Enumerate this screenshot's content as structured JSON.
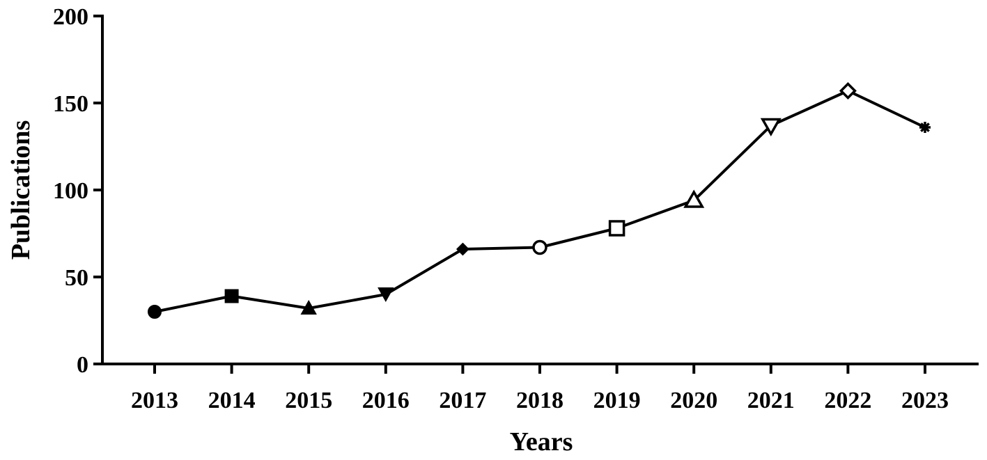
{
  "chart_data": {
    "type": "line",
    "xlabel": "Years",
    "ylabel": "Publications",
    "ylim": [
      0,
      200
    ],
    "yticks": [
      0,
      50,
      100,
      150,
      200
    ],
    "categories": [
      "2013",
      "2014",
      "2015",
      "2016",
      "2017",
      "2018",
      "2019",
      "2020",
      "2021",
      "2022",
      "2023"
    ],
    "series": [
      {
        "values": [
          30,
          39,
          32,
          40,
          66,
          67,
          78,
          94,
          137,
          157,
          136
        ],
        "markers": [
          "circle-filled",
          "square-filled",
          "triangle-up-filled",
          "triangle-down-filled",
          "diamond-filled",
          "circle-open",
          "square-open",
          "triangle-up-open",
          "triangle-down-open",
          "diamond-open",
          "asterisk"
        ],
        "color": "#000000"
      }
    ],
    "grid": false,
    "legend": "none"
  }
}
